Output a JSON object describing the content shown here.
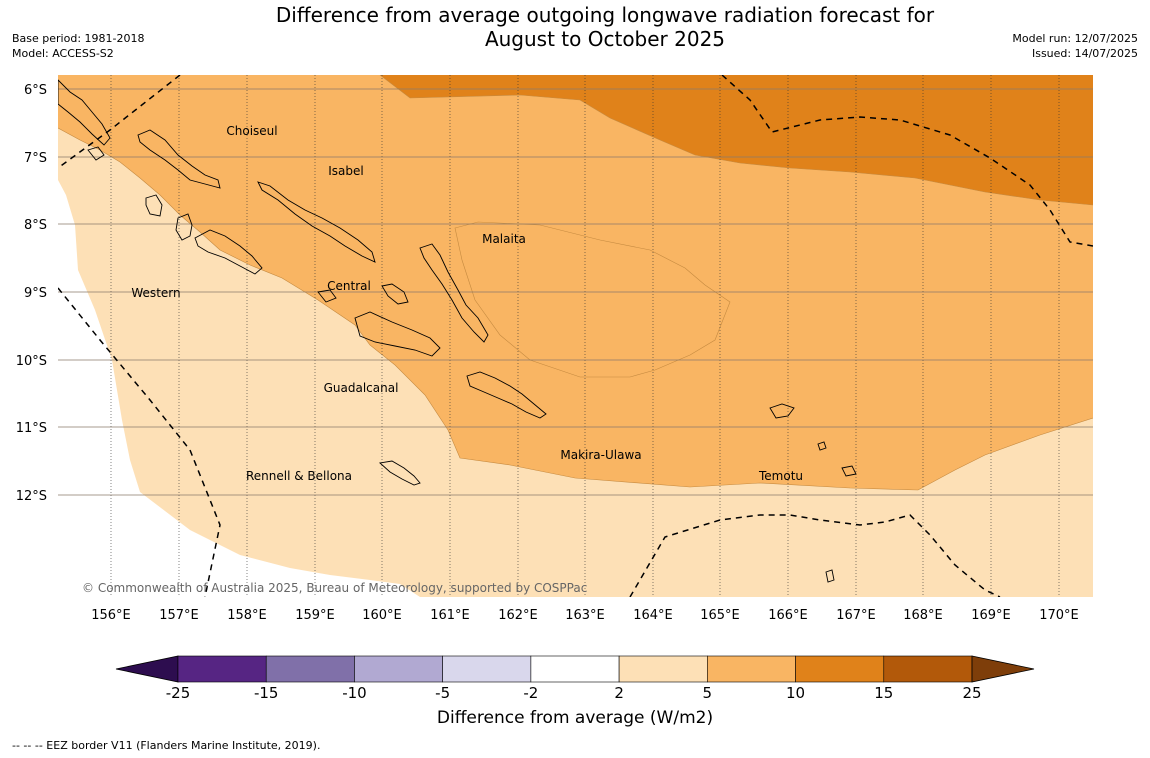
{
  "title_line1": "Difference from average outgoing longwave radiation forecast for",
  "title_line2": "August to October 2025",
  "base_period": "Base period: 1981-2018",
  "model": "Model: ACCESS-S2",
  "model_run": "Model run: 12/07/2025",
  "issued": "Issued: 14/07/2025",
  "copyright": "© Commonwealth of Australia 2025, Bureau of Meteorology, supported by COSPPac",
  "lat_labels": [
    "6°S",
    "7°S",
    "8°S",
    "9°S",
    "10°S",
    "11°S",
    "12°S"
  ],
  "lon_labels": [
    "156°E",
    "157°E",
    "158°E",
    "159°E",
    "160°E",
    "161°E",
    "162°E",
    "163°E",
    "164°E",
    "165°E",
    "166°E",
    "167°E",
    "168°E",
    "169°E",
    "170°E"
  ],
  "provinces": [
    {
      "name": "Choiseul"
    },
    {
      "name": "Isabel"
    },
    {
      "name": "Malaita"
    },
    {
      "name": "Western"
    },
    {
      "name": "Central"
    },
    {
      "name": "Guadalcanal"
    },
    {
      "name": "Rennell & Bellona"
    },
    {
      "name": "Makira-Ulawa"
    },
    {
      "name": "Temotu"
    }
  ],
  "colorbar": {
    "ticks": [
      "-25",
      "-15",
      "-10",
      "-5",
      "-2",
      "2",
      "5",
      "10",
      "15",
      "25"
    ],
    "colors": [
      "#2d0d4f",
      "#562583",
      "#8070a9",
      "#b1a9d2",
      "#d9d7ec",
      "#ffffff",
      "#fde0b6",
      "#f9b563",
      "#e0821a",
      "#b2590a",
      "#7e3e0a"
    ],
    "title": "Difference from average (W/m2)"
  },
  "legend_note": "--  --  -- EEZ border V11 (Flanders Marine Institute, 2019)."
}
